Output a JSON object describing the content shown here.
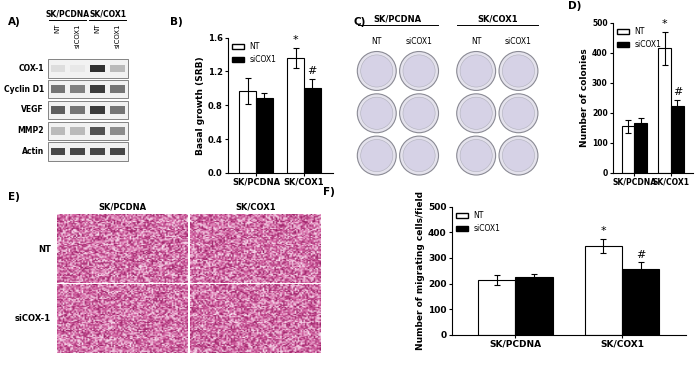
{
  "panels": {
    "A": {
      "label": "A)",
      "groups": [
        {
          "name": "SK/PCDNA",
          "lanes": [
            "NT",
            "siCOX1"
          ]
        },
        {
          "name": "SK/COX1",
          "lanes": [
            "NT",
            "siCOX1"
          ]
        }
      ],
      "rows": [
        {
          "name": "COX-1",
          "intensity": [
            0.15,
            0.1,
            0.9,
            0.3
          ]
        },
        {
          "name": "Cyclin D1",
          "intensity": [
            0.6,
            0.55,
            0.85,
            0.6
          ]
        },
        {
          "name": "VEGF",
          "intensity": [
            0.7,
            0.6,
            0.85,
            0.6
          ]
        },
        {
          "name": "MMP2",
          "intensity": [
            0.3,
            0.3,
            0.75,
            0.5
          ]
        },
        {
          "name": "Actin",
          "intensity": [
            0.8,
            0.8,
            0.8,
            0.8
          ]
        }
      ]
    },
    "C": {
      "label": "C)",
      "groups": [
        {
          "name": "SK/PCDNA",
          "lanes": [
            "NT",
            "siCOX1"
          ]
        },
        {
          "name": "SK/COX1",
          "lanes": [
            "NT",
            "siCOX1"
          ]
        }
      ],
      "plate_rows": 3
    },
    "E": {
      "label": "E)",
      "columns": [
        "SK/PCDNA",
        "SK/COX1"
      ],
      "rows": [
        "NT",
        "siCOX-1"
      ]
    }
  },
  "chart_data": [
    {
      "type": "bar",
      "title": "B)",
      "y_label": "Basal growth (SRB)",
      "categories": [
        "SK/PCDNA",
        "SK/COX1"
      ],
      "series": [
        {
          "name": "NT",
          "color": "#ffffff",
          "values": [
            0.97,
            1.36
          ],
          "errors": [
            0.15,
            0.12
          ]
        },
        {
          "name": "siCOX1",
          "color": "#000000",
          "values": [
            0.89,
            1.01
          ],
          "errors": [
            0.06,
            0.1
          ]
        }
      ],
      "ylim": [
        0,
        1.6
      ],
      "yticks": [
        {
          "value": 0,
          "label": "0.0"
        },
        0.4,
        0.8,
        1.2,
        1.6
      ],
      "legend": "upper left",
      "annotations": [
        {
          "text": "*",
          "series": "NT",
          "category": "SK/COX1"
        },
        {
          "text": "#",
          "series": "siCOX1",
          "category": "SK/COX1"
        }
      ]
    },
    {
      "type": "bar",
      "title": "D)",
      "y_label": "Number of colonies",
      "categories": [
        "SK/PCDNA",
        "SK/COX1"
      ],
      "series": [
        {
          "name": "NT",
          "color": "#ffffff",
          "values": [
            155,
            415
          ],
          "errors": [
            22,
            55
          ]
        },
        {
          "name": "siCOX1",
          "color": "#000000",
          "values": [
            165,
            222
          ],
          "errors": [
            18,
            20
          ]
        }
      ],
      "ylim": [
        0,
        500
      ],
      "yticks": [
        0,
        100,
        200,
        300,
        400,
        500
      ],
      "legend": "upper left",
      "annotations": [
        {
          "text": "*",
          "series": "NT",
          "category": "SK/COX1"
        },
        {
          "text": "#",
          "series": "siCOX1",
          "category": "SK/COX1"
        }
      ]
    },
    {
      "type": "bar",
      "title": "F)",
      "y_label": "Number of migrating cells/field",
      "categories": [
        "SK/PCDNA",
        "SK/COX1"
      ],
      "series": [
        {
          "name": "NT",
          "color": "#ffffff",
          "values": [
            213,
            348
          ],
          "errors": [
            20,
            28
          ]
        },
        {
          "name": "siCOX1",
          "color": "#000000",
          "values": [
            225,
            258
          ],
          "errors": [
            12,
            25
          ]
        }
      ],
      "ylim": [
        0,
        500
      ],
      "yticks": [
        0,
        100,
        200,
        300,
        400,
        500
      ],
      "legend": "upper left",
      "annotations": [
        {
          "text": "*",
          "series": "NT",
          "category": "SK/COX1"
        },
        {
          "text": "#",
          "series": "siCOX1",
          "category": "SK/COX1"
        }
      ]
    }
  ]
}
